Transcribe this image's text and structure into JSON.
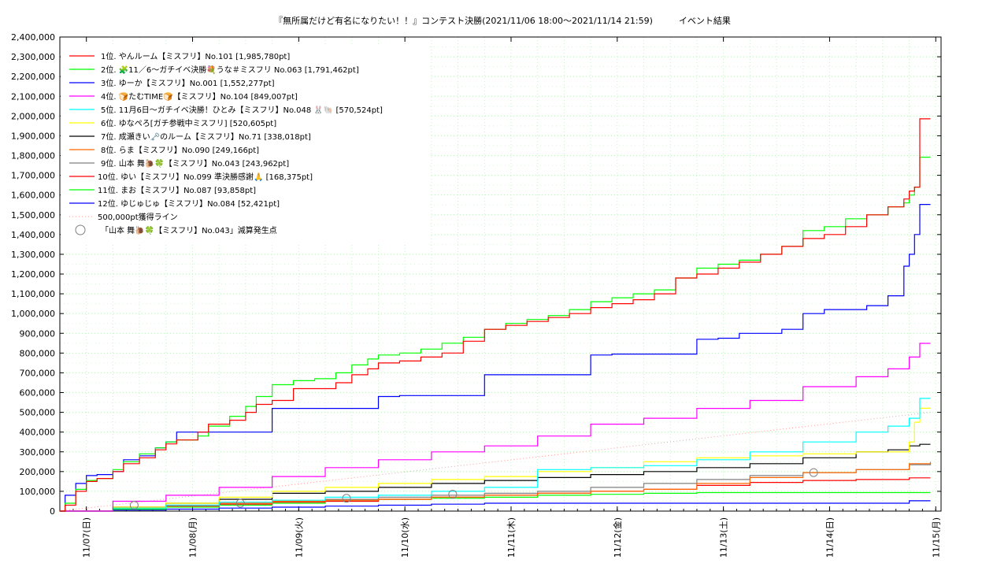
{
  "chart_data": {
    "type": "line",
    "title": "『無所属だけど有名になりたい！！』コンテスト決勝(2021/11/06 18:00～2021/11/14 21:59)　　　イベント結果",
    "xlabel": "",
    "ylabel": "",
    "ylim": [
      0,
      2400000
    ],
    "xlim": [
      0,
      8.3
    ],
    "yticks": [
      0,
      100000,
      200000,
      300000,
      400000,
      500000,
      600000,
      700000,
      800000,
      900000,
      1000000,
      1100000,
      1200000,
      1300000,
      1400000,
      1500000,
      1600000,
      1700000,
      1800000,
      1900000,
      2000000,
      2100000,
      2200000,
      2300000,
      2400000
    ],
    "ytick_labels": [
      "0",
      "100,000",
      "200,000",
      "300,000",
      "400,000",
      "500,000",
      "600,000",
      "700,000",
      "800,000",
      "900,000",
      "1,000,000",
      "1,100,000",
      "1,200,000",
      "1,300,000",
      "1,400,000",
      "1,500,000",
      "1,600,000",
      "1,700,000",
      "1,800,000",
      "1,900,000",
      "2,000,000",
      "2,100,000",
      "2,200,000",
      "2,300,000",
      "2,400,000"
    ],
    "xticks": [
      0.25,
      1.25,
      2.25,
      3.25,
      4.25,
      5.25,
      6.25,
      7.25,
      8.25
    ],
    "xtick_labels": [
      "11/07(日)",
      "11/08(月)",
      "11/09(火)",
      "11/10(水)",
      "11/11(木)",
      "11/12(金)",
      "11/13(土)",
      "11/14(日)",
      "11/15(月)"
    ],
    "grid": true,
    "legend_position": "top-left",
    "x_unit_note": "",
    "series": [
      {
        "name": "1位. やんルーム【ミスフリ】No.101 [1,985,780pt]",
        "color": "#ff0000",
        "x": [
          0,
          0.05,
          0.15,
          0.25,
          0.35,
          0.5,
          0.6,
          0.75,
          0.9,
          1.0,
          1.1,
          1.3,
          1.4,
          1.6,
          1.75,
          1.85,
          2.0,
          2.2,
          2.4,
          2.6,
          2.75,
          2.9,
          3.0,
          3.2,
          3.4,
          3.6,
          3.8,
          4.0,
          4.2,
          4.4,
          4.6,
          4.8,
          5.0,
          5.2,
          5.4,
          5.6,
          5.8,
          6.0,
          6.2,
          6.4,
          6.6,
          6.8,
          7.0,
          7.2,
          7.4,
          7.6,
          7.8,
          7.95,
          8.0,
          8.05,
          8.1,
          8.2
        ],
        "values": [
          0,
          30000,
          100000,
          150000,
          165000,
          200000,
          240000,
          270000,
          310000,
          340000,
          360000,
          400000,
          440000,
          460000,
          500000,
          540000,
          560000,
          620000,
          620000,
          650000,
          690000,
          720000,
          750000,
          760000,
          780000,
          800000,
          860000,
          920000,
          940000,
          960000,
          980000,
          1000000,
          1030000,
          1050000,
          1070000,
          1100000,
          1180000,
          1200000,
          1230000,
          1260000,
          1300000,
          1340000,
          1380000,
          1400000,
          1440000,
          1500000,
          1540000,
          1580000,
          1620000,
          1640000,
          1985780,
          1985780
        ]
      },
      {
        "name": "2位. 🧩11／6～ガチイベ決勝💐うな＃ミスフリ No.063 [1,791,462pt]",
        "color": "#00ff00",
        "x": [
          0,
          0.05,
          0.15,
          0.25,
          0.35,
          0.5,
          0.6,
          0.75,
          0.9,
          1.0,
          1.1,
          1.3,
          1.4,
          1.6,
          1.75,
          1.85,
          2.0,
          2.2,
          2.4,
          2.6,
          2.75,
          2.9,
          3.0,
          3.2,
          3.4,
          3.6,
          3.8,
          4.0,
          4.2,
          4.4,
          4.6,
          4.8,
          5.0,
          5.2,
          5.4,
          5.6,
          5.8,
          6.0,
          6.2,
          6.4,
          6.6,
          6.8,
          7.0,
          7.2,
          7.4,
          7.6,
          7.8,
          7.95,
          8.0,
          8.05,
          8.1,
          8.2
        ],
        "values": [
          0,
          40000,
          110000,
          155000,
          165000,
          210000,
          250000,
          290000,
          320000,
          350000,
          360000,
          380000,
          430000,
          480000,
          530000,
          580000,
          640000,
          660000,
          670000,
          700000,
          740000,
          770000,
          790000,
          800000,
          820000,
          850000,
          880000,
          920000,
          950000,
          970000,
          990000,
          1020000,
          1060000,
          1080000,
          1100000,
          1120000,
          1180000,
          1230000,
          1250000,
          1270000,
          1300000,
          1340000,
          1420000,
          1440000,
          1480000,
          1500000,
          1540000,
          1560000,
          1600000,
          1640000,
          1791462,
          1791462
        ]
      },
      {
        "name": "3位. ゆーか【ミスフリ】No.001 [1,552,277pt]",
        "color": "#0000ff",
        "x": [
          0,
          0.05,
          0.15,
          0.25,
          0.35,
          0.5,
          0.6,
          0.75,
          0.9,
          1.0,
          1.1,
          1.3,
          1.4,
          1.6,
          1.75,
          1.85,
          2.0,
          2.2,
          2.4,
          2.6,
          2.75,
          2.9,
          3.0,
          3.2,
          3.4,
          3.6,
          3.8,
          4.0,
          4.2,
          4.4,
          4.6,
          4.8,
          5.0,
          5.2,
          5.4,
          5.6,
          5.8,
          6.0,
          6.2,
          6.4,
          6.6,
          6.8,
          7.0,
          7.2,
          7.4,
          7.6,
          7.8,
          7.95,
          8.0,
          8.05,
          8.1,
          8.2
        ],
        "values": [
          0,
          80000,
          140000,
          180000,
          185000,
          200000,
          260000,
          280000,
          320000,
          350000,
          400000,
          400000,
          400000,
          400000,
          400000,
          400000,
          520000,
          520000,
          520000,
          520000,
          520000,
          520000,
          580000,
          585000,
          585000,
          585000,
          585000,
          690000,
          690000,
          690000,
          690000,
          690000,
          790000,
          795000,
          795000,
          795000,
          795000,
          870000,
          875000,
          900000,
          900000,
          920000,
          1000000,
          1020000,
          1020000,
          1040000,
          1090000,
          1240000,
          1300000,
          1400000,
          1552277,
          1552277
        ]
      },
      {
        "name": "4位. 🍞たむTIME🍞【ミスフリ】No.104 [849,007pt]",
        "color": "#ff00ff",
        "x": [
          0,
          0.5,
          1.0,
          1.5,
          2.0,
          2.5,
          3.0,
          3.5,
          4.0,
          4.5,
          5.0,
          5.5,
          6.0,
          6.5,
          7.0,
          7.5,
          7.8,
          8.0,
          8.1,
          8.2
        ],
        "values": [
          0,
          50000,
          80000,
          120000,
          175000,
          220000,
          260000,
          300000,
          330000,
          380000,
          440000,
          470000,
          520000,
          560000,
          630000,
          680000,
          720000,
          780000,
          849007,
          849007
        ]
      },
      {
        "name": "5位. 11月6日～ガチイベ決勝！ひとみ【ミスフリ】No.048 🐰🐚 [570,524pt]",
        "color": "#00ffff",
        "x": [
          0,
          0.5,
          1.0,
          1.5,
          2.0,
          2.5,
          3.0,
          3.5,
          4.0,
          4.5,
          5.0,
          5.5,
          6.0,
          6.5,
          7.0,
          7.5,
          7.8,
          8.0,
          8.1,
          8.2
        ],
        "values": [
          0,
          15000,
          30000,
          45000,
          55000,
          70000,
          80000,
          100000,
          120000,
          210000,
          220000,
          230000,
          260000,
          300000,
          350000,
          400000,
          430000,
          470000,
          570524,
          570524
        ]
      },
      {
        "name": "6位. ゆなぺろ[ガチ参戦中ミスフリ] [520,605pt]",
        "color": "#ffff00",
        "x": [
          0,
          0.5,
          1.0,
          1.5,
          2.0,
          2.5,
          3.0,
          3.5,
          4.0,
          4.5,
          5.0,
          5.5,
          6.0,
          6.5,
          7.0,
          7.5,
          7.8,
          8.0,
          8.05,
          8.1,
          8.2
        ],
        "values": [
          0,
          20000,
          40000,
          70000,
          100000,
          120000,
          140000,
          160000,
          175000,
          200000,
          220000,
          250000,
          270000,
          280000,
          290000,
          300000,
          300000,
          350000,
          450000,
          520605,
          520605
        ]
      },
      {
        "name": "7位. 成瀬きい🗝️のルーム【ミスフリ】No.71 [338,018pt]",
        "color": "#000000",
        "x": [
          0,
          0.5,
          1.0,
          1.5,
          2.0,
          2.5,
          3.0,
          3.5,
          4.0,
          4.5,
          5.0,
          5.5,
          6.0,
          6.5,
          7.0,
          7.5,
          7.8,
          8.0,
          8.1,
          8.2
        ],
        "values": [
          0,
          20000,
          40000,
          60000,
          90000,
          100000,
          120000,
          140000,
          155000,
          170000,
          185000,
          200000,
          220000,
          240000,
          270000,
          300000,
          310000,
          330000,
          338018,
          338018
        ]
      },
      {
        "name": "8位. らま【ミスフリ】No.090 [249,166pt]",
        "color": "#ff6600",
        "x": [
          0,
          0.5,
          1.0,
          1.5,
          2.0,
          2.5,
          3.0,
          3.5,
          4.0,
          4.5,
          5.0,
          5.5,
          6.0,
          6.5,
          7.0,
          7.5,
          8.0,
          8.2
        ],
        "values": [
          0,
          20000,
          30000,
          40000,
          50000,
          55000,
          60000,
          70000,
          80000,
          90000,
          100000,
          110000,
          140000,
          170000,
          195000,
          210000,
          240000,
          249166
        ]
      },
      {
        "name": "9位. 山本 舞🐌🍀【ミスフリ】No.043 [243,962pt]",
        "color": "#808080",
        "x": [
          0,
          0.5,
          1.0,
          1.5,
          2.0,
          2.5,
          3.0,
          3.5,
          4.0,
          4.5,
          5.0,
          5.5,
          6.0,
          6.5,
          7.0,
          7.5,
          8.0,
          8.2
        ],
        "values": [
          0,
          15000,
          30000,
          40000,
          50000,
          60000,
          70000,
          80000,
          90000,
          100000,
          120000,
          140000,
          160000,
          180000,
          195000,
          210000,
          235000,
          243962
        ]
      },
      {
        "name": "10位. ゆい【ミスフリ】No.099 準決勝感謝🙏 [168,375pt]",
        "color": "#ff0000",
        "x": [
          0,
          0.5,
          1.0,
          1.5,
          2.0,
          2.5,
          3.0,
          3.5,
          4.0,
          4.5,
          5.0,
          5.5,
          6.0,
          6.5,
          7.0,
          7.5,
          8.0,
          8.2
        ],
        "values": [
          0,
          15000,
          25000,
          35000,
          45000,
          50000,
          60000,
          70000,
          80000,
          90000,
          100000,
          110000,
          130000,
          145000,
          155000,
          160000,
          168375,
          168375
        ]
      },
      {
        "name": "11位. まお【ミスフリ】No.087 [93,858pt]",
        "color": "#00ff00",
        "x": [
          0,
          0.5,
          1.0,
          1.5,
          2.0,
          2.5,
          3.0,
          3.5,
          4.0,
          4.5,
          5.0,
          5.5,
          6.0,
          8.2
        ],
        "values": [
          0,
          10000,
          20000,
          30000,
          40000,
          50000,
          60000,
          65000,
          70000,
          80000,
          85000,
          90000,
          93858,
          93858
        ]
      },
      {
        "name": "12位. ゆじゅじゅ【ミスフリ】No.084 [52,421pt]",
        "color": "#0000ff",
        "x": [
          0,
          0.5,
          1.0,
          1.5,
          2.0,
          2.5,
          3.0,
          3.5,
          4.0,
          5.0,
          6.0,
          7.0,
          7.5,
          8.0,
          8.2
        ],
        "values": [
          0,
          5000,
          10000,
          15000,
          20000,
          25000,
          30000,
          35000,
          40000,
          40000,
          40000,
          40000,
          40000,
          52421,
          52421
        ]
      }
    ],
    "reference_line": {
      "name": "500,000pt獲得ライン",
      "color": "#ff9999",
      "x": [
        0,
        8.2
      ],
      "values": [
        0,
        500000
      ]
    },
    "markers": {
      "name": "「山本 舞🐌🍀【ミスフリ】No.043」減算発生点",
      "color": "#808080",
      "x": [
        0.7,
        1.7,
        2.7,
        3.7,
        7.1
      ],
      "values": [
        30000,
        40000,
        65000,
        85000,
        195000
      ]
    }
  }
}
